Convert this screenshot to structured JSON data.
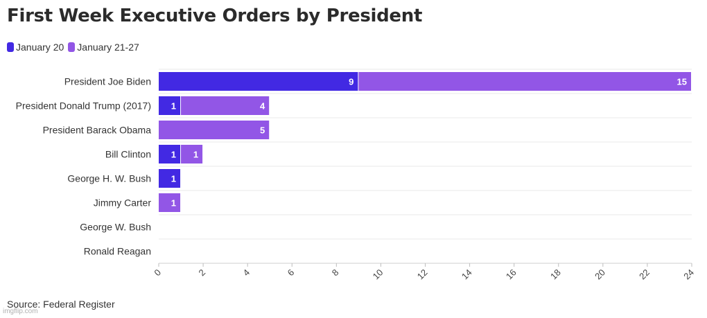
{
  "chart_data": {
    "type": "bar",
    "orientation": "horizontal",
    "stacked": true,
    "title": "First Week Executive Orders by President",
    "categories": [
      "President Joe Biden",
      "President Donald Trump (2017)",
      "President Barack Obama",
      "Bill Clinton",
      "George H. W. Bush",
      "Jimmy Carter",
      "George W. Bush",
      "Ronald Reagan"
    ],
    "series": [
      {
        "name": "January 20",
        "color": "#4229e3",
        "values": [
          9,
          1,
          0,
          1,
          1,
          0,
          0,
          0
        ]
      },
      {
        "name": "January 21-27",
        "color": "#9256e6",
        "values": [
          15,
          4,
          5,
          1,
          0,
          1,
          0,
          0
        ]
      }
    ],
    "xlim": [
      0,
      24
    ],
    "xticks": [
      "0",
      "2",
      "4",
      "6",
      "8",
      "10",
      "12",
      "14",
      "16",
      "18",
      "20",
      "22",
      "24"
    ],
    "grid": true,
    "legend_position": "top-left",
    "source": "Source: Federal Register"
  },
  "watermark": "imgflip.com"
}
